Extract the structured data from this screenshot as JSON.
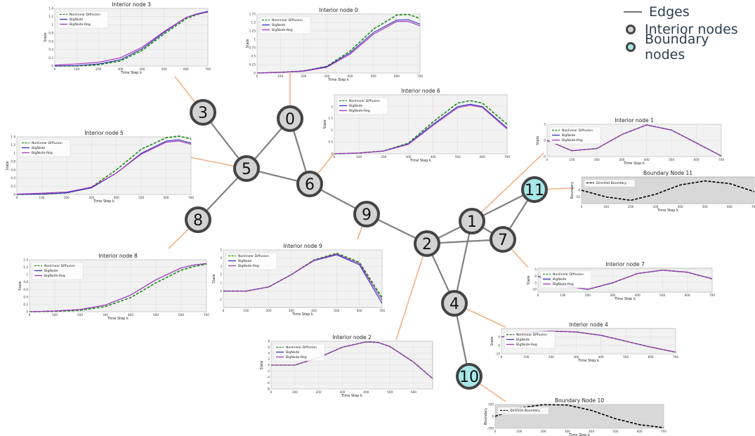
{
  "legend": {
    "edges": "Edges",
    "interior": "Interior nodes",
    "boundary": "Boundary nodes"
  },
  "colors": {
    "interior_fill": "#d3d3d3",
    "boundary_fill": "#a8e8e8",
    "node_stroke": "#444444",
    "edge": "#808080",
    "leader": "#f4b183",
    "nonlinear": "#1a8a1a",
    "bignode": "#3333bb",
    "bignode_reg": "#aa33bb",
    "dirichlet": "#000000",
    "plot_bg": "#f2f2f2",
    "boundary_bg": "#d8d8d8"
  },
  "graph": {
    "nodes": [
      {
        "id": "0",
        "type": "interior"
      },
      {
        "id": "1",
        "type": "interior"
      },
      {
        "id": "2",
        "type": "interior"
      },
      {
        "id": "3",
        "type": "interior"
      },
      {
        "id": "4",
        "type": "interior"
      },
      {
        "id": "5",
        "type": "interior"
      },
      {
        "id": "6",
        "type": "interior"
      },
      {
        "id": "7",
        "type": "interior"
      },
      {
        "id": "8",
        "type": "interior"
      },
      {
        "id": "9",
        "type": "interior"
      },
      {
        "id": "10",
        "type": "boundary"
      },
      {
        "id": "11",
        "type": "boundary"
      }
    ],
    "edges": [
      [
        "3",
        "5"
      ],
      [
        "0",
        "5"
      ],
      [
        "0",
        "6"
      ],
      [
        "5",
        "6"
      ],
      [
        "5",
        "8"
      ],
      [
        "6",
        "9"
      ],
      [
        "9",
        "2"
      ],
      [
        "2",
        "1"
      ],
      [
        "2",
        "7"
      ],
      [
        "1",
        "7"
      ],
      [
        "1",
        "11"
      ],
      [
        "7",
        "11"
      ],
      [
        "1",
        "4"
      ],
      [
        "2",
        "4"
      ],
      [
        "4",
        "10"
      ]
    ]
  },
  "series_labels": {
    "nonlinear": "Nonlinear Diffusion",
    "bignode": "BigNode",
    "bignode_reg": "BigNode-Reg",
    "dirichlet": "Dirichlet Boundary"
  },
  "x_label": "Time Step k",
  "chart_data": [
    {
      "id": "n3",
      "node": "3",
      "type": "line",
      "title": "Interior node 3",
      "xlabel": "Time Step k",
      "ylabel": "State",
      "xlim": [
        0,
        700
      ],
      "ylim": [
        0,
        1.4
      ],
      "xticks": [
        0,
        100,
        200,
        300,
        400,
        500,
        600,
        700
      ],
      "yticks": [
        0,
        0.2,
        0.4,
        0.6,
        0.8,
        1.0,
        1.2,
        1.4
      ],
      "x": [
        0,
        100,
        200,
        300,
        400,
        500,
        600,
        650,
        700
      ],
      "series": [
        {
          "name": "Nonlinear Diffusion",
          "key": "nonlinear",
          "values": [
            0.0,
            0.0,
            0.03,
            0.12,
            0.38,
            0.78,
            1.15,
            1.25,
            1.32
          ]
        },
        {
          "name": "BigNode",
          "key": "bignode",
          "values": [
            0.0,
            0.01,
            0.05,
            0.15,
            0.42,
            0.82,
            1.18,
            1.27,
            1.33
          ]
        },
        {
          "name": "BigNode-Reg",
          "key": "bignode_reg",
          "values": [
            0.02,
            0.05,
            0.09,
            0.2,
            0.46,
            0.84,
            1.18,
            1.26,
            1.31
          ]
        }
      ]
    },
    {
      "id": "n0",
      "node": "0",
      "type": "line",
      "title": "Interior node 0",
      "xlabel": "Time Step k",
      "ylabel": "State",
      "xlim": [
        0,
        700
      ],
      "ylim": [
        0,
        1.75
      ],
      "xticks": [
        0,
        100,
        200,
        300,
        400,
        500,
        600,
        700
      ],
      "yticks": [
        0,
        0.25,
        0.5,
        0.75,
        1.0,
        1.25,
        1.5,
        1.75
      ],
      "x": [
        0,
        100,
        200,
        300,
        400,
        500,
        600,
        650,
        700
      ],
      "series": [
        {
          "name": "Nonlinear Diffusion",
          "key": "nonlinear",
          "values": [
            0.0,
            0.02,
            0.06,
            0.2,
            0.65,
            1.3,
            1.72,
            1.74,
            1.62
          ]
        },
        {
          "name": "BigNode",
          "key": "bignode",
          "values": [
            0.0,
            0.02,
            0.06,
            0.19,
            0.6,
            1.2,
            1.57,
            1.58,
            1.45
          ]
        },
        {
          "name": "BigNode-Reg",
          "key": "bignode_reg",
          "values": [
            0.0,
            0.02,
            0.05,
            0.17,
            0.56,
            1.15,
            1.53,
            1.53,
            1.4
          ]
        }
      ]
    },
    {
      "id": "n6",
      "node": "6",
      "type": "line",
      "title": "Interior node 6",
      "xlabel": "Time Step k",
      "ylabel": "State",
      "xlim": [
        0,
        700
      ],
      "ylim": [
        0,
        2.5
      ],
      "xticks": [
        0,
        100,
        200,
        300,
        400,
        500,
        600,
        700
      ],
      "yticks": [
        0,
        0.5,
        1.0,
        1.5,
        2.0
      ],
      "x": [
        0,
        100,
        200,
        300,
        400,
        500,
        550,
        600,
        700
      ],
      "series": [
        {
          "name": "Nonlinear Diffusion",
          "key": "nonlinear",
          "values": [
            0.0,
            0.03,
            0.12,
            0.45,
            1.35,
            2.15,
            2.25,
            2.15,
            1.25
          ]
        },
        {
          "name": "BigNode",
          "key": "bignode",
          "values": [
            0.0,
            0.03,
            0.12,
            0.42,
            1.25,
            2.0,
            2.1,
            2.0,
            1.1
          ]
        },
        {
          "name": "BigNode-Reg",
          "key": "bignode_reg",
          "values": [
            0.0,
            0.03,
            0.11,
            0.4,
            1.2,
            1.95,
            2.06,
            1.96,
            1.05
          ]
        }
      ]
    },
    {
      "id": "n5",
      "node": "5",
      "type": "line",
      "title": "Interior node 5",
      "xlabel": "Time Step k",
      "ylabel": "State",
      "xlim": [
        0,
        700
      ],
      "ylim": [
        0,
        1.4
      ],
      "xticks": [
        0,
        100,
        200,
        300,
        400,
        500,
        600,
        700
      ],
      "yticks": [
        0,
        0.2,
        0.4,
        0.6,
        0.8,
        1.0,
        1.2,
        1.4
      ],
      "x": [
        0,
        100,
        200,
        300,
        400,
        500,
        600,
        650,
        700
      ],
      "series": [
        {
          "name": "Nonlinear Diffusion",
          "key": "nonlinear",
          "values": [
            0.0,
            0.01,
            0.04,
            0.18,
            0.6,
            1.1,
            1.38,
            1.42,
            1.35
          ]
        },
        {
          "name": "BigNode",
          "key": "bignode",
          "values": [
            0.0,
            0.01,
            0.04,
            0.16,
            0.52,
            1.0,
            1.3,
            1.33,
            1.25
          ]
        },
        {
          "name": "BigNode-Reg",
          "key": "bignode_reg",
          "values": [
            0.01,
            0.03,
            0.06,
            0.18,
            0.52,
            0.98,
            1.27,
            1.3,
            1.22
          ]
        }
      ]
    },
    {
      "id": "n1",
      "node": "1",
      "type": "line",
      "title": "Interior node 1",
      "xlabel": "Time Step k",
      "ylabel": "State",
      "xlim": [
        0,
        700
      ],
      "ylim": [
        -5,
        5
      ],
      "xticks": [
        0,
        100,
        200,
        300,
        400,
        500,
        600,
        700
      ],
      "yticks": [
        -5,
        0,
        5
      ],
      "x": [
        0,
        100,
        200,
        300,
        400,
        500,
        600,
        700
      ],
      "series": [
        {
          "name": "Nonlinear Diffusion",
          "key": "nonlinear",
          "values": [
            0,
            -3.2,
            -2.5,
            1.8,
            4.8,
            3.2,
            -0.8,
            -4.8
          ]
        },
        {
          "name": "BigNode",
          "key": "bignode",
          "values": [
            0,
            -3.2,
            -2.5,
            1.8,
            4.8,
            3.2,
            -0.8,
            -4.8
          ]
        },
        {
          "name": "BigNode-Reg",
          "key": "bignode_reg",
          "values": [
            0,
            -3.2,
            -2.5,
            1.8,
            4.8,
            3.2,
            -0.8,
            -4.8
          ]
        }
      ]
    },
    {
      "id": "b11",
      "node": "11",
      "type": "line",
      "title": "Boundary Node 11",
      "xlabel": "Time Step k",
      "ylabel": "Boundary",
      "xlim": [
        0,
        700
      ],
      "ylim": [
        -20,
        20
      ],
      "xticks": [
        0,
        100,
        200,
        300,
        400,
        500,
        600,
        700
      ],
      "yticks": [
        -10,
        0
      ],
      "x": [
        0,
        100,
        200,
        300,
        400,
        500,
        600,
        700
      ],
      "series": [
        {
          "name": "Dirichlet Boundary",
          "key": "dirichlet",
          "values": [
            0,
            -10,
            -15,
            -6,
            8,
            14,
            10,
            -2
          ]
        }
      ]
    },
    {
      "id": "n8",
      "node": "8",
      "type": "line",
      "title": "Interior node 8",
      "xlabel": "Time Step k",
      "ylabel": "State",
      "xlim": [
        0,
        700
      ],
      "ylim": [
        0,
        1.4
      ],
      "xticks": [
        0,
        100,
        200,
        300,
        400,
        500,
        600,
        700
      ],
      "yticks": [
        0,
        0.2,
        0.4,
        0.6,
        0.8,
        1.0,
        1.2,
        1.4
      ],
      "x": [
        0,
        100,
        200,
        300,
        400,
        500,
        600,
        650,
        700
      ],
      "series": [
        {
          "name": "Nonlinear Diffusion",
          "key": "nonlinear",
          "values": [
            0.0,
            0.01,
            0.04,
            0.14,
            0.38,
            0.78,
            1.12,
            1.22,
            1.28
          ]
        },
        {
          "name": "BigNode",
          "key": "bignode",
          "values": [
            0.0,
            0.02,
            0.06,
            0.18,
            0.45,
            0.86,
            1.18,
            1.26,
            1.3
          ]
        },
        {
          "name": "BigNode-Reg",
          "key": "bignode_reg",
          "values": [
            0.0,
            0.02,
            0.06,
            0.18,
            0.45,
            0.86,
            1.18,
            1.26,
            1.3
          ]
        }
      ]
    },
    {
      "id": "n9",
      "node": "9",
      "type": "line",
      "title": "Interior node 9",
      "xlabel": "Time Step k",
      "ylabel": "State",
      "xlim": [
        0,
        700
      ],
      "ylim": [
        -2,
        5
      ],
      "xticks": [
        0,
        100,
        200,
        300,
        400,
        500,
        600,
        700
      ],
      "yticks": [
        -1,
        0,
        1,
        2,
        3,
        4,
        5
      ],
      "x": [
        0,
        100,
        200,
        300,
        400,
        500,
        600,
        700
      ],
      "series": [
        {
          "name": "Nonlinear Diffusion",
          "key": "nonlinear",
          "values": [
            0,
            0,
            0.5,
            2.0,
            3.8,
            4.6,
            3.5,
            -0.8
          ]
        },
        {
          "name": "BigNode",
          "key": "bignode",
          "values": [
            0,
            0,
            0.5,
            2.0,
            3.7,
            4.4,
            3.2,
            -1.5
          ]
        },
        {
          "name": "BigNode-Reg",
          "key": "bignode_reg",
          "values": [
            0,
            0,
            0.5,
            2.0,
            3.75,
            4.5,
            3.35,
            -1.1
          ]
        }
      ]
    },
    {
      "id": "n7",
      "node": "7",
      "type": "line",
      "title": "Interior node 7",
      "xlabel": "Time Step k",
      "ylabel": "State",
      "xlim": [
        0,
        700
      ],
      "ylim": [
        -12,
        6
      ],
      "xticks": [
        0,
        100,
        200,
        300,
        400,
        500,
        600,
        700
      ],
      "yticks": [
        -10,
        -5,
        0,
        5
      ],
      "x": [
        0,
        100,
        200,
        300,
        400,
        500,
        600,
        700
      ],
      "series": [
        {
          "name": "Nonlinear Diffusion",
          "key": "nonlinear",
          "values": [
            0,
            -7,
            -10,
            -5,
            2,
            4.5,
            3,
            -2
          ]
        },
        {
          "name": "BigNode",
          "key": "bignode",
          "values": [
            0,
            -7,
            -10,
            -5,
            2,
            4.5,
            3,
            -2
          ]
        },
        {
          "name": "BigNode-Reg",
          "key": "bignode_reg",
          "values": [
            0,
            -7,
            -10,
            -5,
            2,
            4.5,
            3,
            -2
          ]
        }
      ]
    },
    {
      "id": "n4",
      "node": "4",
      "type": "line",
      "title": "Interior node 4",
      "xlabel": "Time Step k",
      "ylabel": "State",
      "xlim": [
        0,
        700
      ],
      "ylim": [
        -10,
        5
      ],
      "xticks": [
        0,
        100,
        200,
        300,
        400,
        500,
        600,
        700
      ],
      "yticks": [
        -10,
        -5,
        0
      ],
      "x": [
        0,
        100,
        200,
        300,
        400,
        500,
        600,
        700
      ],
      "series": [
        {
          "name": "Nonlinear Diffusion",
          "key": "nonlinear",
          "values": [
            0,
            2.5,
            3.5,
            3.0,
            1.0,
            -2.5,
            -6,
            -9
          ]
        },
        {
          "name": "BigNode",
          "key": "bignode",
          "values": [
            0,
            2.5,
            3.5,
            3.0,
            1.0,
            -2.5,
            -6,
            -9
          ]
        },
        {
          "name": "BigNode-Reg",
          "key": "bignode_reg",
          "values": [
            0,
            2.5,
            3.5,
            3.0,
            1.0,
            -2.5,
            -6,
            -9
          ]
        }
      ]
    },
    {
      "id": "n2",
      "node": "2",
      "type": "line",
      "title": "Interior node 2",
      "xlabel": "Time Step k",
      "ylabel": "State",
      "xlim": [
        0,
        680
      ],
      "ylim": [
        -8,
        8
      ],
      "xticks": [
        0,
        100,
        200,
        300,
        400,
        500,
        600
      ],
      "yticks": [
        -8,
        -6,
        -4,
        -2,
        0,
        2,
        4,
        6,
        8
      ],
      "x": [
        0,
        100,
        200,
        300,
        400,
        450,
        500,
        600,
        680
      ],
      "series": [
        {
          "name": "Nonlinear Diffusion",
          "key": "nonlinear",
          "values": [
            0,
            0,
            2.5,
            6.0,
            7.8,
            7.6,
            6.2,
            1.0,
            -4.5
          ]
        },
        {
          "name": "BigNode",
          "key": "bignode",
          "values": [
            0,
            0,
            2.5,
            6.0,
            7.8,
            7.6,
            6.2,
            1.0,
            -4.5
          ]
        },
        {
          "name": "BigNode-Reg",
          "key": "bignode_reg",
          "values": [
            0,
            0,
            2.5,
            6.0,
            7.8,
            7.6,
            6.2,
            1.0,
            -4.5
          ]
        }
      ]
    },
    {
      "id": "b10",
      "node": "10",
      "type": "line",
      "title": "Boundary Node 10",
      "xlabel": "Time Step k",
      "ylabel": "Boundary",
      "xlim": [
        0,
        700
      ],
      "ylim": [
        -100,
        100
      ],
      "xticks": [
        0,
        100,
        200,
        300,
        400,
        500,
        600,
        700
      ],
      "yticks": [
        -100,
        0,
        100
      ],
      "x": [
        0,
        100,
        200,
        300,
        400,
        500,
        600,
        700
      ],
      "series": [
        {
          "name": "Dirichlet Boundary",
          "key": "dirichlet",
          "values": [
            0,
            70,
            98,
            95,
            50,
            -20,
            -70,
            -95
          ]
        }
      ]
    }
  ]
}
